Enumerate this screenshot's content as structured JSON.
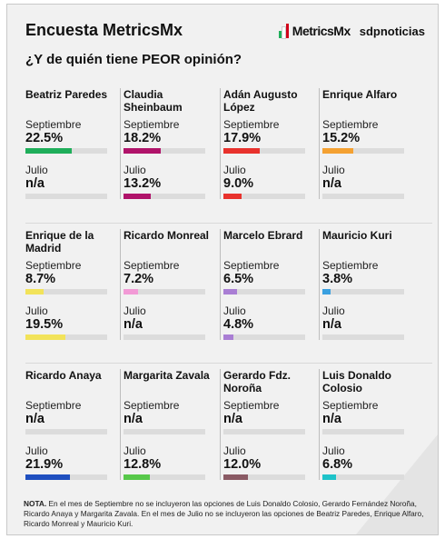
{
  "header": {
    "title": "Encuesta MetricsMx",
    "logo_metrics": "MetricsMx",
    "logo_sdp": "sdpnoticias"
  },
  "subtitle": "¿Y de quién tiene PEOR opinión?",
  "labels": {
    "september": "Septiembre",
    "july": "Julio"
  },
  "chart_data": {
    "type": "bar",
    "title": "¿Y de quién tiene PEOR opinión?",
    "unit": "%",
    "periods": [
      "Septiembre",
      "Julio"
    ],
    "candidates": [
      {
        "name": "Beatriz Paredes",
        "color": "#1fae5a",
        "september": 22.5,
        "july": null,
        "september_text": "22.5%",
        "july_text": "n/a"
      },
      {
        "name": "Claudia Sheinbaum",
        "color": "#b0136a",
        "september": 18.2,
        "july": 13.2,
        "september_text": "18.2%",
        "july_text": "13.2%"
      },
      {
        "name": "Adán Augusto López",
        "color": "#e8322d",
        "september": 17.9,
        "july": 9.0,
        "september_text": "17.9%",
        "july_text": "9.0%"
      },
      {
        "name": "Enrique Alfaro",
        "color": "#f4a132",
        "september": 15.2,
        "july": null,
        "september_text": "15.2%",
        "july_text": "n/a"
      },
      {
        "name": "Enrique de la Madrid",
        "color": "#f2e35a",
        "september": 8.7,
        "july": 19.5,
        "september_text": "8.7%",
        "july_text": "19.5%"
      },
      {
        "name": "Ricardo Monreal",
        "color": "#f29ad6",
        "september": 7.2,
        "july": null,
        "september_text": "7.2%",
        "july_text": "n/a"
      },
      {
        "name": "Marcelo Ebrard",
        "color": "#a97ed4",
        "september": 6.5,
        "july": 4.8,
        "september_text": "6.5%",
        "july_text": "4.8%"
      },
      {
        "name": "Mauricio Kuri",
        "color": "#3aa0e0",
        "september": 3.8,
        "july": null,
        "september_text": "3.8%",
        "july_text": "n/a"
      },
      {
        "name": "Ricardo Anaya",
        "color": "#1f4fbf",
        "september": null,
        "july": 21.9,
        "september_text": "n/a",
        "july_text": "21.9%"
      },
      {
        "name": "Margarita Zavala",
        "color": "#57c84a",
        "september": null,
        "july": 12.8,
        "september_text": "n/a",
        "july_text": "12.8%"
      },
      {
        "name": "Gerardo Fdz. Noroña",
        "color": "#8a5a64",
        "september": null,
        "july": 12.0,
        "september_text": "n/a",
        "july_text": "12.0%"
      },
      {
        "name": "Luis Donaldo Colosio",
        "color": "#1ec3c9",
        "september": null,
        "july": 6.8,
        "september_text": "n/a",
        "july_text": "6.8%"
      }
    ],
    "ylim": [
      0,
      40
    ]
  },
  "note": {
    "label": "NOTA.",
    "text": "En el mes de Septiembre no se incluyeron las opciones de Luis Donaldo Colosio, Gerardo Fernández Noroña, Ricardo Anaya y Margarita Zavala. En el mes de Julio no se incluyeron las opciones de Beatriz Paredes, Enrique Alfaro, Ricardo Monreal y Mauricio Kuri."
  }
}
